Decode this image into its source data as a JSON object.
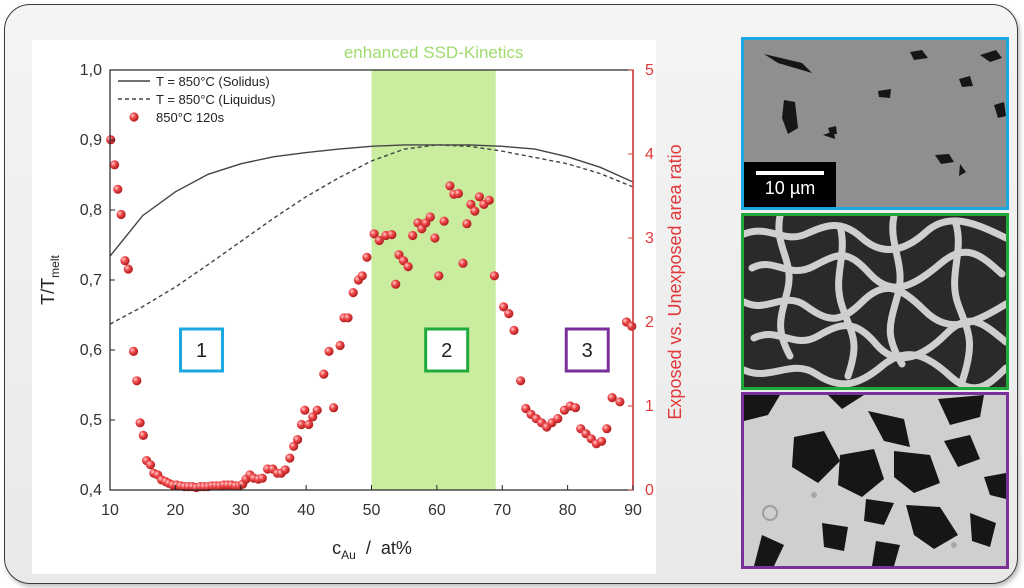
{
  "chart_data": {
    "type": "scatter",
    "shaded_region": {
      "label": "enhanced SSD-Kinetics",
      "x_range": [
        50,
        69
      ],
      "color": "#c9ec9f"
    },
    "x_axis": {
      "label_main": "c",
      "label_sub": "Au",
      "label_tail": "  /  at%",
      "range": [
        10,
        90
      ],
      "ticks": [
        10,
        20,
        30,
        40,
        50,
        60,
        70,
        80,
        90
      ]
    },
    "y_axis_left": {
      "label_main": "T/T",
      "label_sub": "melt",
      "range": [
        0.4,
        1.0
      ],
      "ticks": [
        "0,4",
        "0,5",
        "0,6",
        "0,7",
        "0,8",
        "0,9",
        "1,0"
      ]
    },
    "y_axis_right": {
      "label": "Exposed vs. Unexposed area ratio",
      "range": [
        0,
        5
      ],
      "ticks": [
        0,
        1,
        2,
        3,
        4,
        5
      ],
      "color": "#e0393b"
    },
    "legend": {
      "placement": "top-left",
      "items": [
        {
          "label": "T = 850°C (Solidus)",
          "style": "solid"
        },
        {
          "label": "T = 850°C (Liquidus)",
          "style": "dashed"
        },
        {
          "label": "850°C 120s",
          "style": "marker"
        }
      ]
    },
    "series": [
      {
        "name": "T = 850°C (Solidus)",
        "axis": "left",
        "x": [
          10,
          15,
          20,
          25,
          30,
          35,
          40,
          45,
          50,
          55,
          60,
          65,
          70,
          75,
          80,
          85,
          90
        ],
        "y": [
          0.734,
          0.792,
          0.826,
          0.851,
          0.866,
          0.876,
          0.882,
          0.887,
          0.891,
          0.893,
          0.893,
          0.893,
          0.891,
          0.887,
          0.876,
          0.861,
          0.84
        ]
      },
      {
        "name": "T = 850°C (Liquidus)",
        "axis": "left",
        "x": [
          10,
          15,
          20,
          25,
          30,
          35,
          40,
          45,
          50,
          55,
          60,
          65,
          70,
          75,
          80,
          85,
          90
        ],
        "y": [
          0.637,
          0.662,
          0.69,
          0.722,
          0.755,
          0.788,
          0.819,
          0.846,
          0.87,
          0.887,
          0.893,
          0.891,
          0.884,
          0.875,
          0.866,
          0.852,
          0.833
        ]
      },
      {
        "name": "850°C 120s",
        "axis": "right",
        "points": [
          [
            10.1,
            4.17
          ],
          [
            10.7,
            3.87
          ],
          [
            11.2,
            3.58
          ],
          [
            11.7,
            3.28
          ],
          [
            12.3,
            2.73
          ],
          [
            12.8,
            2.63
          ],
          [
            13.6,
            1.65
          ],
          [
            14.1,
            1.3
          ],
          [
            14.6,
            0.8
          ],
          [
            15.1,
            0.65
          ],
          [
            15.6,
            0.35
          ],
          [
            16.2,
            0.3
          ],
          [
            16.7,
            0.2
          ],
          [
            17.3,
            0.18
          ],
          [
            17.9,
            0.12
          ],
          [
            18.5,
            0.1
          ],
          [
            19.0,
            0.08
          ],
          [
            19.6,
            0.06
          ],
          [
            20.2,
            0.06
          ],
          [
            20.8,
            0.05
          ],
          [
            21.4,
            0.04
          ],
          [
            22.0,
            0.04
          ],
          [
            22.6,
            0.04
          ],
          [
            23.2,
            0.03
          ],
          [
            23.8,
            0.04
          ],
          [
            24.4,
            0.04
          ],
          [
            25.0,
            0.04
          ],
          [
            25.6,
            0.05
          ],
          [
            26.2,
            0.05
          ],
          [
            26.8,
            0.05
          ],
          [
            27.4,
            0.06
          ],
          [
            28.0,
            0.06
          ],
          [
            28.6,
            0.06
          ],
          [
            29.2,
            0.05
          ],
          [
            29.8,
            0.05
          ],
          [
            30.3,
            0.07
          ],
          [
            30.8,
            0.13
          ],
          [
            31.4,
            0.18
          ],
          [
            32.0,
            0.14
          ],
          [
            32.7,
            0.13
          ],
          [
            33.3,
            0.14
          ],
          [
            34.1,
            0.25
          ],
          [
            34.9,
            0.25
          ],
          [
            35.6,
            0.2
          ],
          [
            36.2,
            0.2
          ],
          [
            36.8,
            0.24
          ],
          [
            37.5,
            0.38
          ],
          [
            38.1,
            0.52
          ],
          [
            38.7,
            0.6
          ],
          [
            39.3,
            0.78
          ],
          [
            39.8,
            0.95
          ],
          [
            40.4,
            0.78
          ],
          [
            41.0,
            0.87
          ],
          [
            41.7,
            0.95
          ],
          [
            42.7,
            1.38
          ],
          [
            43.5,
            1.65
          ],
          [
            44.2,
            0.98
          ],
          [
            45.2,
            1.72
          ],
          [
            45.8,
            2.05
          ],
          [
            46.4,
            2.05
          ],
          [
            47.2,
            2.35
          ],
          [
            48.0,
            2.5
          ],
          [
            48.6,
            2.55
          ],
          [
            49.3,
            2.77
          ],
          [
            50.4,
            3.05
          ],
          [
            51.2,
            2.97
          ],
          [
            52.2,
            3.03
          ],
          [
            53.1,
            3.04
          ],
          [
            53.7,
            2.45
          ],
          [
            54.2,
            2.8
          ],
          [
            54.9,
            2.73
          ],
          [
            55.6,
            2.66
          ],
          [
            56.3,
            3.03
          ],
          [
            57.1,
            3.18
          ],
          [
            57.7,
            3.11
          ],
          [
            58.3,
            3.18
          ],
          [
            59.0,
            3.25
          ],
          [
            59.7,
            3.0
          ],
          [
            60.3,
            2.55
          ],
          [
            61.1,
            3.2
          ],
          [
            62.0,
            3.62
          ],
          [
            62.6,
            3.52
          ],
          [
            63.3,
            3.53
          ],
          [
            64.0,
            2.7
          ],
          [
            64.6,
            3.17
          ],
          [
            65.2,
            3.4
          ],
          [
            65.8,
            3.32
          ],
          [
            66.5,
            3.49
          ],
          [
            67.2,
            3.4
          ],
          [
            68.0,
            3.45
          ],
          [
            68.8,
            2.55
          ],
          [
            70.2,
            2.18
          ],
          [
            71.0,
            2.1
          ],
          [
            71.8,
            1.9
          ],
          [
            72.8,
            1.3
          ],
          [
            73.6,
            0.97
          ],
          [
            74.4,
            0.9
          ],
          [
            75.2,
            0.85
          ],
          [
            76.0,
            0.8
          ],
          [
            76.8,
            0.75
          ],
          [
            77.6,
            0.8
          ],
          [
            78.5,
            0.85
          ],
          [
            79.5,
            0.95
          ],
          [
            80.4,
            1.0
          ],
          [
            81.2,
            0.98
          ],
          [
            82.0,
            0.73
          ],
          [
            82.8,
            0.67
          ],
          [
            83.6,
            0.61
          ],
          [
            84.4,
            0.55
          ],
          [
            85.2,
            0.58
          ],
          [
            86.0,
            0.73
          ],
          [
            86.8,
            1.1
          ],
          [
            88.0,
            1.05
          ],
          [
            89.0,
            2.0
          ],
          [
            89.8,
            1.95
          ]
        ]
      }
    ],
    "regions": [
      {
        "label": "1",
        "x": 24,
        "y": 0.6,
        "color": "#1ba7e0"
      },
      {
        "label": "2",
        "x": 61.5,
        "y": 0.6,
        "color": "#1faa3b"
      },
      {
        "label": "3",
        "x": 83,
        "y": 0.6,
        "color": "#7a2f9a"
      }
    ]
  },
  "micrographs": [
    {
      "region": "1",
      "border_color": "#1ba7e0",
      "scale_bar_label": "10 µm"
    },
    {
      "region": "2",
      "border_color": "#1faa3b"
    },
    {
      "region": "3",
      "border_color": "#7a2f9a"
    }
  ]
}
